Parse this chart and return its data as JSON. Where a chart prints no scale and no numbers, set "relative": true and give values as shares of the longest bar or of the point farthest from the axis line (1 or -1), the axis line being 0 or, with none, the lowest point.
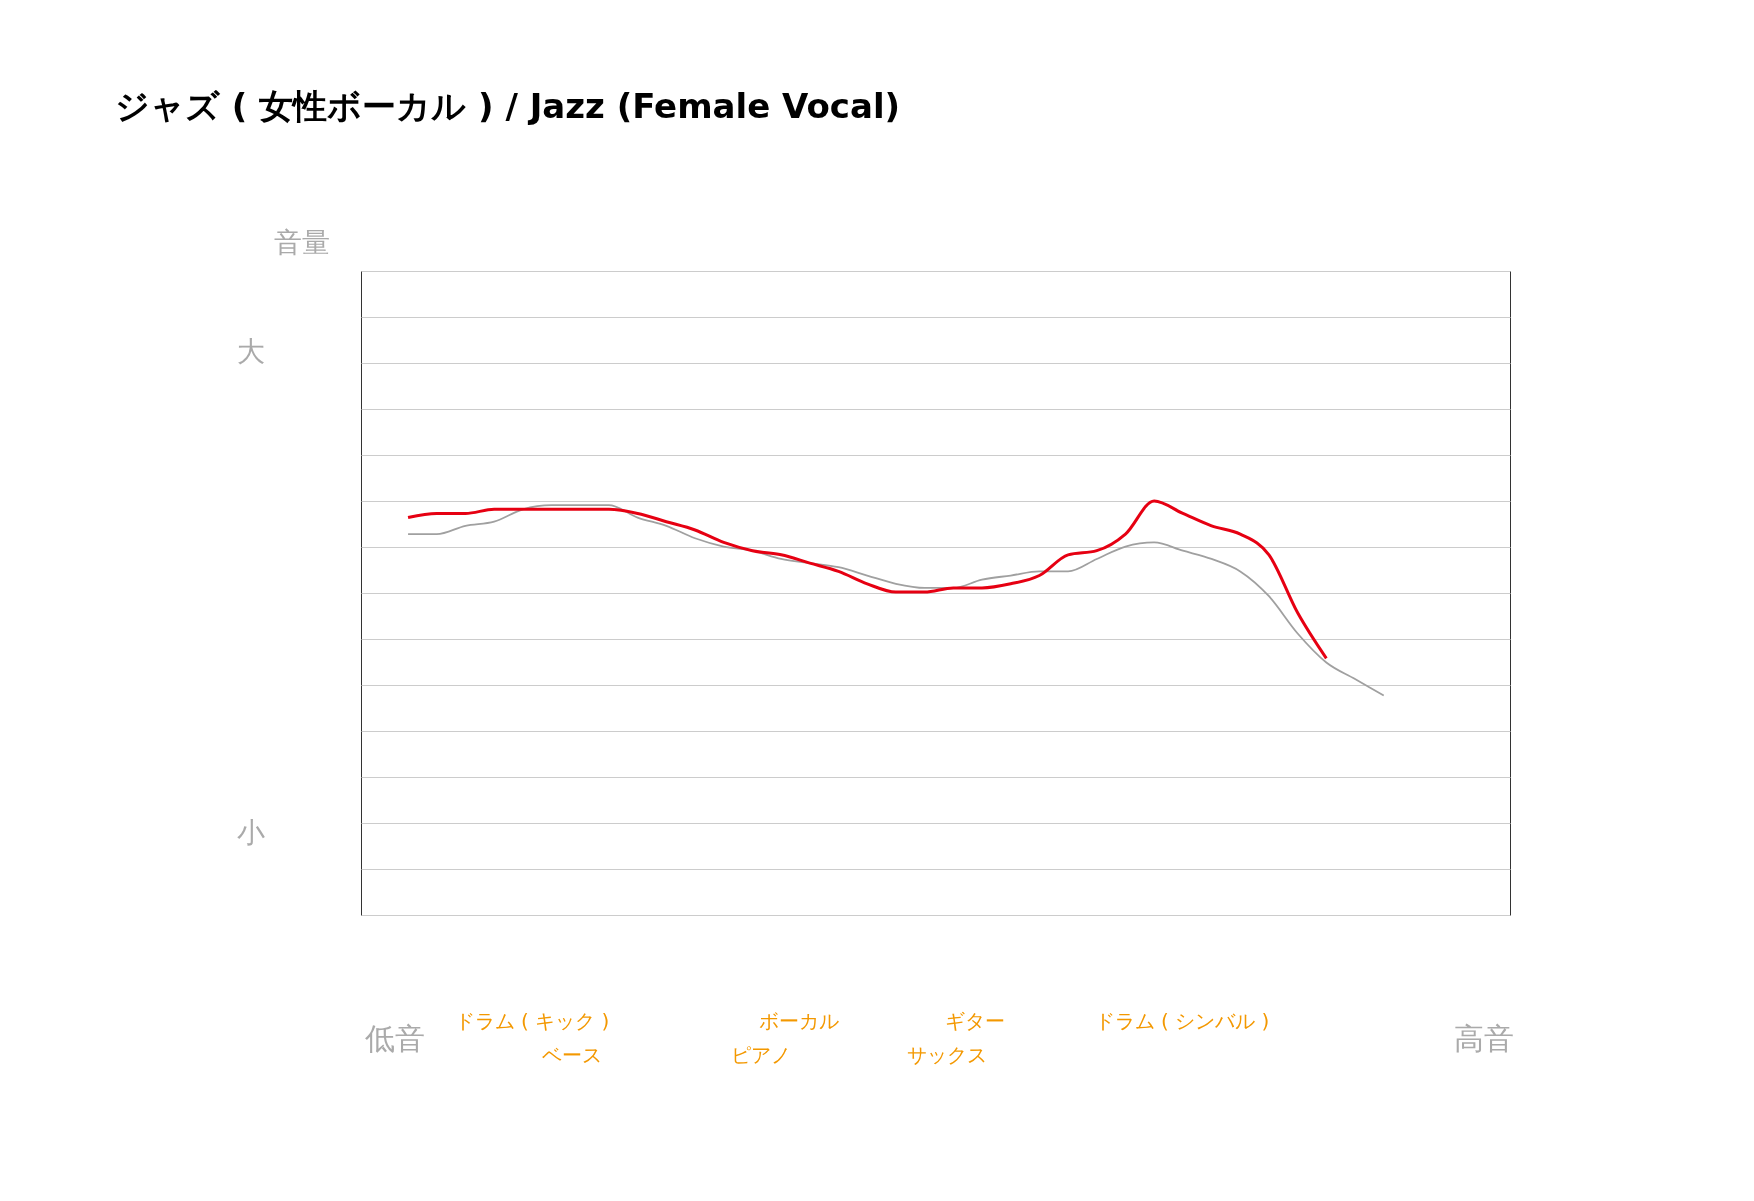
{
  "chart_data": {
    "type": "line",
    "title": "ジャズ ( 女性ボーカル ) / Jazz (Female Vocal)",
    "relative": true,
    "grid": "y",
    "annotations": [
      "音量",
      "大",
      "小",
      "低音",
      "高音",
      "ドラム ( キック )",
      "ベース",
      "ボーカル",
      "ピアノ",
      "ギター",
      "サックス",
      "ドラム ( シンバル )"
    ],
    "categories": [
      null,
      null,
      null,
      null,
      null,
      null,
      null,
      null,
      null,
      null,
      null,
      null,
      null,
      null,
      null,
      null,
      null,
      null,
      null,
      null,
      null,
      null,
      null,
      null,
      null,
      null,
      null,
      null,
      null,
      null,
      null,
      null,
      null,
      null,
      null
    ],
    "series": [
      {
        "color": "#a0a0a0",
        "values": [
          0.92,
          0.92,
          0.94,
          0.95,
          0.98,
          0.99,
          0.99,
          0.99,
          0.96,
          0.94,
          0.91,
          0.89,
          0.88,
          0.86,
          0.85,
          0.84,
          0.82,
          0.8,
          0.79,
          0.79,
          0.81,
          0.82,
          0.83,
          0.83,
          0.86,
          0.89,
          0.9,
          0.88,
          0.86,
          0.83,
          0.77,
          0.68,
          0.61,
          0.57,
          0.53
        ]
      },
      {
        "color": "#e60012",
        "values": [
          0.96,
          0.97,
          0.97,
          0.98,
          0.98,
          0.98,
          0.98,
          0.98,
          0.97,
          0.95,
          0.93,
          0.9,
          0.88,
          0.87,
          0.85,
          0.83,
          0.8,
          0.78,
          0.78,
          0.79,
          0.79,
          0.8,
          0.82,
          0.87,
          0.88,
          0.92,
          1.0,
          0.97,
          0.94,
          0.92,
          0.87,
          0.73,
          0.62,
          null,
          null
        ]
      }
    ]
  }
}
